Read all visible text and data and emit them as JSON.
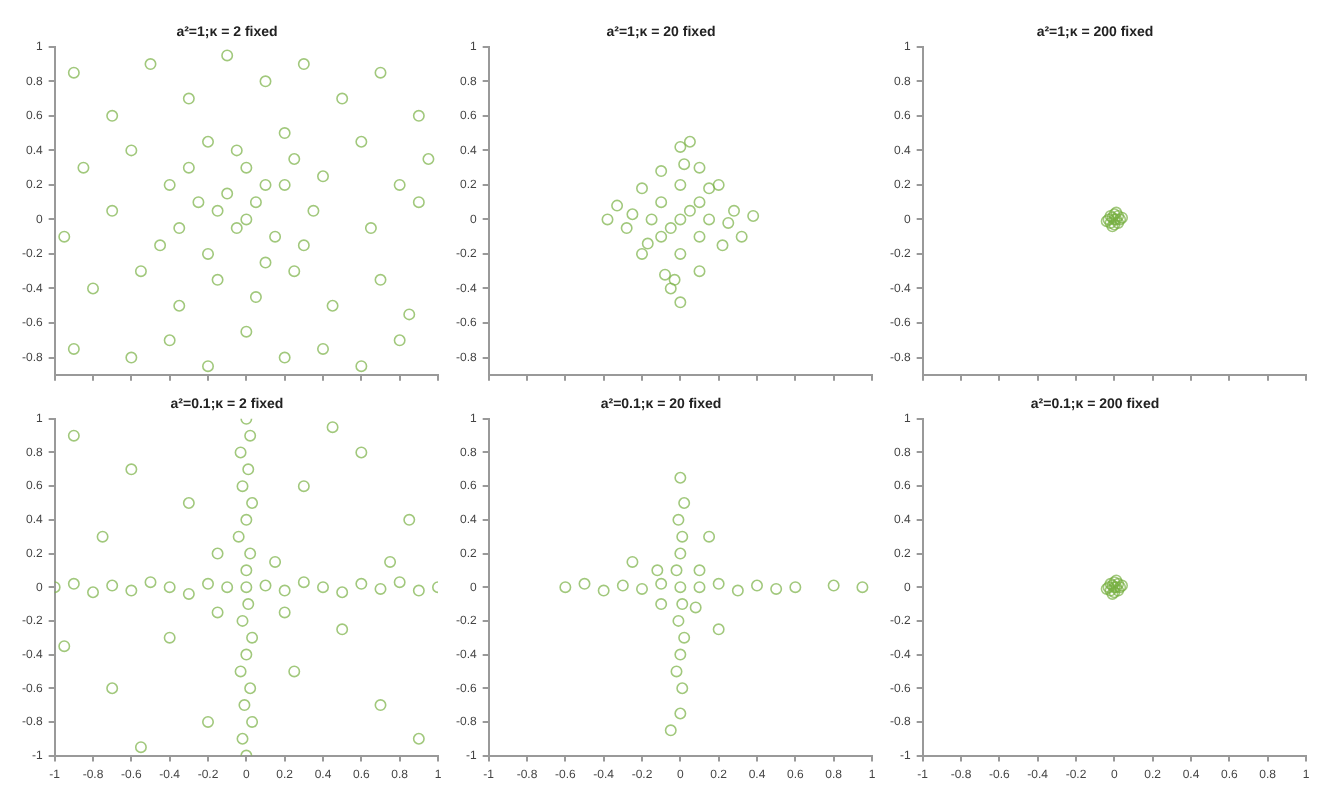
{
  "chart_data": [
    {
      "type": "scatter",
      "title": "a²=1;κ = 2 fixed",
      "color": "#77b041",
      "marker": "circle",
      "tick_labels": "y",
      "xlim": [
        -1,
        1
      ],
      "ylim": [
        -0.9,
        1
      ],
      "xticks": [
        -1,
        -0.8,
        -0.6,
        -0.4,
        -0.2,
        0,
        0.2,
        0.4,
        0.6,
        0.8,
        1
      ],
      "yticks": [
        -0.8,
        -0.6,
        -0.4,
        -0.2,
        0,
        0.2,
        0.4,
        0.6,
        0.8,
        1
      ],
      "x": [
        -0.9,
        -0.7,
        -0.5,
        -0.3,
        -0.1,
        0.1,
        0.3,
        0.5,
        0.7,
        0.9,
        -0.85,
        -0.6,
        -0.4,
        -0.2,
        0,
        0.2,
        0.4,
        0.6,
        0.8,
        0.95,
        -0.95,
        -0.7,
        -0.45,
        -0.25,
        -0.05,
        0.05,
        0.15,
        0.35,
        0.65,
        0.9,
        -0.8,
        -0.55,
        -0.35,
        -0.15,
        0.05,
        0.25,
        0.45,
        0.7,
        0.85,
        -0.1,
        -0.9,
        -0.6,
        -0.4,
        -0.2,
        0,
        0.2,
        0.4,
        0.6,
        0.8,
        0.1,
        -0.2,
        0.3,
        -0.3,
        0.2,
        -0.15,
        0.1,
        0,
        -0.05,
        0.25,
        -0.35
      ],
      "values": [
        0.85,
        0.6,
        0.9,
        0.7,
        0.95,
        0.8,
        0.9,
        0.7,
        0.85,
        0.6,
        0.3,
        0.4,
        0.2,
        0.45,
        0.3,
        0.5,
        0.25,
        0.45,
        0.2,
        0.35,
        -0.1,
        0.05,
        -0.15,
        0.1,
        -0.05,
        0.1,
        -0.1,
        0.05,
        -0.05,
        0.1,
        -0.4,
        -0.3,
        -0.5,
        -0.35,
        -0.45,
        -0.3,
        -0.5,
        -0.35,
        -0.55,
        0.15,
        -0.75,
        -0.8,
        -0.7,
        -0.85,
        -0.65,
        -0.8,
        -0.75,
        -0.85,
        -0.7,
        0.2,
        -0.2,
        -0.15,
        0.3,
        0.2,
        0.05,
        -0.25,
        0,
        0.4,
        0.35,
        -0.05
      ]
    },
    {
      "type": "scatter",
      "title": "a²=1;κ = 20 fixed",
      "color": "#77b041",
      "marker": "circle",
      "tick_labels": "y",
      "xlim": [
        -1,
        1
      ],
      "ylim": [
        -0.9,
        1
      ],
      "xticks": [
        -1,
        -0.8,
        -0.6,
        -0.4,
        -0.2,
        0,
        0.2,
        0.4,
        0.6,
        0.8,
        1
      ],
      "yticks": [
        -0.8,
        -0.6,
        -0.4,
        -0.2,
        0,
        0.2,
        0.4,
        0.6,
        0.8,
        1
      ],
      "x": [
        0,
        0,
        -0.38,
        0.38,
        0.1,
        -0.1,
        0.2,
        -0.2,
        0.28,
        -0.28,
        0.22,
        -0.2,
        0.1,
        -0.08,
        0,
        0,
        0.15,
        -0.15,
        0.05,
        -0.05,
        0.1,
        -0.1,
        0.1,
        -0.1,
        0,
        0.25,
        -0.25,
        0.02,
        -0.03,
        0.05,
        -0.05,
        0.32,
        -0.33,
        0.15,
        -0.17
      ],
      "values": [
        0.42,
        -0.48,
        0,
        0.02,
        0.3,
        0.28,
        0.2,
        0.18,
        0.05,
        -0.05,
        -0.15,
        -0.2,
        -0.3,
        -0.32,
        0.2,
        -0.2,
        0,
        0,
        0.05,
        -0.05,
        0.1,
        -0.1,
        -0.1,
        0.1,
        0,
        -0.02,
        0.03,
        0.32,
        -0.35,
        0.45,
        -0.4,
        -0.1,
        0.08,
        0.18,
        -0.14
      ]
    },
    {
      "type": "scatter",
      "title": "a²=1;κ = 200 fixed",
      "color": "#77b041",
      "marker": "circle",
      "tick_labels": "y",
      "xlim": [
        -1,
        1
      ],
      "ylim": [
        -0.9,
        1
      ],
      "xticks": [
        -1,
        -0.8,
        -0.6,
        -0.4,
        -0.2,
        0,
        0.2,
        0.4,
        0.6,
        0.8,
        1
      ],
      "yticks": [
        -0.8,
        -0.6,
        -0.4,
        -0.2,
        0,
        0.2,
        0.4,
        0.6,
        0.8,
        1
      ],
      "x": [
        0,
        0.03,
        -0.03,
        0,
        0,
        0.02,
        -0.02,
        0.02,
        -0.02,
        0.04,
        -0.04,
        0.01,
        -0.01,
        0.01,
        -0.01
      ],
      "values": [
        0,
        0,
        0,
        0.03,
        -0.03,
        0.02,
        -0.02,
        -0.02,
        0.02,
        0.01,
        -0.01,
        0.04,
        -0.04,
        0,
        0.01
      ]
    },
    {
      "type": "scatter",
      "title": "a²=0.1;κ = 2 fixed",
      "color": "#77b041",
      "marker": "circle",
      "xlim": [
        -1,
        1
      ],
      "ylim": [
        -1,
        1
      ],
      "xticks": [
        -1,
        -0.8,
        -0.6,
        -0.4,
        -0.2,
        0,
        0.2,
        0.4,
        0.6,
        0.8,
        1
      ],
      "yticks": [
        -1,
        -0.8,
        -0.6,
        -0.4,
        -0.2,
        0,
        0.2,
        0.4,
        0.6,
        0.8,
        1
      ],
      "x": [
        -1,
        -0.9,
        -0.8,
        -0.7,
        -0.6,
        -0.5,
        -0.4,
        -0.3,
        -0.2,
        -0.1,
        0.1,
        0.2,
        0.3,
        0.4,
        0.5,
        0.6,
        0.7,
        0.8,
        0.9,
        1,
        0,
        0.02,
        -0.03,
        0.01,
        -0.02,
        0.03,
        0,
        -0.04,
        0.02,
        0,
        0.01,
        -0.02,
        0.03,
        0,
        -0.03,
        0.02,
        -0.01,
        0.03,
        -0.02,
        0,
        0,
        -0.9,
        -0.6,
        -0.3,
        0.3,
        0.6,
        0.85,
        -0.75,
        -0.4,
        -0.7,
        -0.2,
        0.25,
        0.5,
        0.7,
        0.9,
        0.15,
        -0.15,
        0.2,
        -0.15,
        -0.55,
        0.45,
        -0.95,
        0.75
      ],
      "values": [
        0,
        0.02,
        -0.03,
        0.01,
        -0.02,
        0.03,
        0,
        -0.04,
        0.02,
        0,
        0.01,
        -0.02,
        0.03,
        0,
        -0.03,
        0.02,
        -0.01,
        0.03,
        -0.02,
        0,
        1,
        0.9,
        0.8,
        0.7,
        0.6,
        0.5,
        0.4,
        0.3,
        0.2,
        0.1,
        -0.1,
        -0.2,
        -0.3,
        -0.4,
        -0.5,
        -0.6,
        -0.7,
        -0.8,
        -0.9,
        -1,
        0,
        0.9,
        0.7,
        0.5,
        0.6,
        0.8,
        0.4,
        0.3,
        -0.3,
        -0.6,
        -0.8,
        -0.5,
        -0.25,
        -0.7,
        -0.9,
        0.15,
        -0.15,
        -0.15,
        0.2,
        -0.95,
        0.95,
        -0.35,
        0.15
      ]
    },
    {
      "type": "scatter",
      "title": "a²=0.1;κ = 20 fixed",
      "color": "#77b041",
      "marker": "circle",
      "xlim": [
        -1,
        1
      ],
      "ylim": [
        -1,
        1
      ],
      "xticks": [
        -1,
        -0.8,
        -0.6,
        -0.4,
        -0.2,
        0,
        0.2,
        0.4,
        0.6,
        0.8,
        1
      ],
      "yticks": [
        -1,
        -0.8,
        -0.6,
        -0.4,
        -0.2,
        0,
        0.2,
        0.4,
        0.6,
        0.8,
        1
      ],
      "x": [
        -0.6,
        -0.5,
        -0.4,
        -0.3,
        -0.2,
        -0.1,
        0.1,
        0.2,
        0.3,
        0.4,
        0.5,
        0.6,
        0.8,
        0.95,
        0,
        0.02,
        -0.01,
        0.01,
        0,
        -0.02,
        0,
        0.01,
        -0.01,
        0.02,
        0,
        -0.02,
        0.01,
        0,
        0.1,
        -0.1,
        0.08,
        -0.12,
        -0.25,
        0.2,
        0.15,
        -0.05
      ],
      "values": [
        0,
        0.02,
        -0.02,
        0.01,
        -0.01,
        0.02,
        0,
        0.02,
        -0.02,
        0.01,
        -0.01,
        0,
        0.01,
        0,
        0.65,
        0.5,
        0.4,
        0.3,
        0.2,
        0.1,
        0,
        -0.1,
        -0.2,
        -0.3,
        -0.4,
        -0.5,
        -0.6,
        -0.75,
        0.1,
        -0.1,
        -0.12,
        0.1,
        0.15,
        -0.25,
        0.3,
        -0.85
      ]
    },
    {
      "type": "scatter",
      "title": "a²=0.1;κ = 200 fixed",
      "color": "#77b041",
      "marker": "circle",
      "xlim": [
        -1,
        1
      ],
      "ylim": [
        -1,
        1
      ],
      "xticks": [
        -1,
        -0.8,
        -0.6,
        -0.4,
        -0.2,
        0,
        0.2,
        0.4,
        0.6,
        0.8,
        1
      ],
      "yticks": [
        -1,
        -0.8,
        -0.6,
        -0.4,
        -0.2,
        0,
        0.2,
        0.4,
        0.6,
        0.8,
        1
      ],
      "x": [
        0,
        0.03,
        -0.03,
        0,
        0,
        0.02,
        -0.02,
        0.02,
        -0.02,
        0.04,
        -0.04,
        0.01,
        -0.01,
        0.01,
        -0.01
      ],
      "values": [
        0,
        0,
        0,
        0.03,
        -0.03,
        0.02,
        -0.02,
        -0.02,
        0.02,
        0.01,
        -0.01,
        0.04,
        -0.04,
        0,
        0.01
      ]
    }
  ]
}
